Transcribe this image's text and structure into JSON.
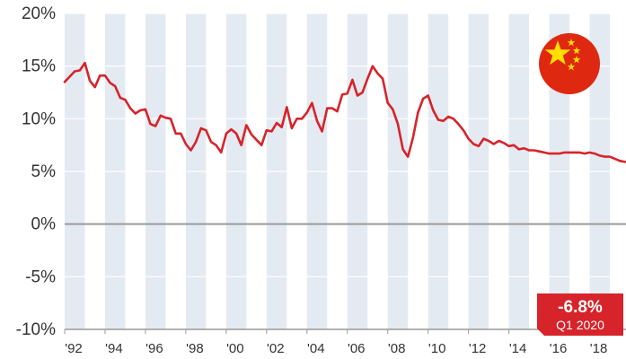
{
  "chart_data": {
    "type": "line",
    "title": "",
    "xlabel": "",
    "ylabel": "",
    "y_ticks": [
      "20%",
      "15%",
      "10%",
      "5%",
      "0%",
      "-5%",
      "-10%"
    ],
    "y_tick_values": [
      20,
      15,
      10,
      5,
      0,
      -5,
      -10
    ],
    "x_ticks": [
      "'92",
      "'94",
      "'96",
      "'98",
      "'00",
      "'02",
      "'04",
      "'06",
      "'08",
      "'10",
      "'12",
      "'14",
      "'16",
      "'18"
    ],
    "x_tick_years": [
      1992,
      1994,
      1996,
      1998,
      2000,
      2002,
      2004,
      2006,
      2008,
      2010,
      2012,
      2014,
      2016,
      2018
    ],
    "xlim": [
      1992,
      2019.8
    ],
    "ylim": [
      -10,
      20
    ],
    "grid": true,
    "zero_line": true,
    "series": [
      {
        "color": "#d7232a",
        "x": [
          1992.0,
          1992.25,
          1992.5,
          1992.75,
          1993.0,
          1993.25,
          1993.5,
          1993.75,
          1994.0,
          1994.25,
          1994.5,
          1994.75,
          1995.0,
          1995.25,
          1995.5,
          1995.75,
          1996.0,
          1996.25,
          1996.5,
          1996.75,
          1997.0,
          1997.25,
          1997.5,
          1997.75,
          1998.0,
          1998.25,
          1998.5,
          1998.75,
          1999.0,
          1999.25,
          1999.5,
          1999.75,
          2000.0,
          2000.25,
          2000.5,
          2000.75,
          2001.0,
          2001.25,
          2001.5,
          2001.75,
          2002.0,
          2002.25,
          2002.5,
          2002.75,
          2003.0,
          2003.25,
          2003.5,
          2003.75,
          2004.0,
          2004.25,
          2004.5,
          2004.75,
          2005.0,
          2005.25,
          2005.5,
          2005.75,
          2006.0,
          2006.25,
          2006.5,
          2006.75,
          2007.0,
          2007.25,
          2007.5,
          2007.75,
          2008.0,
          2008.25,
          2008.5,
          2008.75,
          2009.0,
          2009.25,
          2009.5,
          2009.75,
          2010.0,
          2010.25,
          2010.5,
          2010.75,
          2011.0,
          2011.25,
          2011.5,
          2011.75,
          2012.0,
          2012.25,
          2012.5,
          2012.75,
          2013.0,
          2013.25,
          2013.5,
          2013.75,
          2014.0,
          2014.25,
          2014.5,
          2014.75,
          2015.0,
          2015.25,
          2015.5,
          2015.75,
          2016.0,
          2016.25,
          2016.5,
          2016.75,
          2017.0,
          2017.25,
          2017.5,
          2017.75,
          2018.0,
          2018.25,
          2018.5,
          2018.75,
          2019.0,
          2019.25,
          2019.5,
          2019.75
        ],
        "y": [
          13.5,
          14.0,
          14.5,
          14.6,
          15.3,
          13.6,
          13.0,
          14.1,
          14.1,
          13.4,
          13.1,
          12.0,
          11.8,
          11.0,
          10.5,
          10.8,
          10.9,
          9.5,
          9.3,
          10.3,
          10.1,
          10.0,
          8.6,
          8.6,
          7.6,
          7.0,
          7.8,
          9.1,
          8.9,
          7.8,
          7.5,
          6.8,
          8.6,
          9.0,
          8.6,
          7.5,
          9.4,
          8.5,
          8.0,
          7.5,
          8.9,
          8.8,
          9.6,
          9.2,
          11.1,
          9.1,
          10.0,
          10.0,
          10.6,
          11.5,
          9.8,
          8.8,
          11.0,
          11.0,
          10.7,
          12.3,
          12.4,
          13.7,
          12.2,
          12.5,
          13.8,
          15.0,
          14.3,
          13.8,
          11.5,
          10.9,
          9.5,
          7.1,
          6.4,
          8.2,
          10.6,
          11.9,
          12.2,
          10.8,
          9.9,
          9.8,
          10.2,
          10.0,
          9.5,
          8.9,
          8.1,
          7.6,
          7.4,
          8.1,
          7.9,
          7.6,
          7.9,
          7.7,
          7.4,
          7.5,
          7.1,
          7.2,
          7.0,
          7.0,
          6.9,
          6.8,
          6.7,
          6.7,
          6.7,
          6.8,
          6.8,
          6.8,
          6.8,
          6.7,
          6.8,
          6.7,
          6.5,
          6.4,
          6.4,
          6.2,
          6.0,
          5.9
        ]
      }
    ],
    "callout": {
      "value": "-6.8%",
      "period": "Q1 2020",
      "color": "#d7232a"
    },
    "band_color": "#e4eaf2",
    "axis_color": "#9a9a9a",
    "line_color": "#d7232a"
  },
  "icons": {
    "flag": "china-flag-icon"
  },
  "colors": {
    "flag_red": "#de2910",
    "flag_yellow": "#ffde00"
  }
}
